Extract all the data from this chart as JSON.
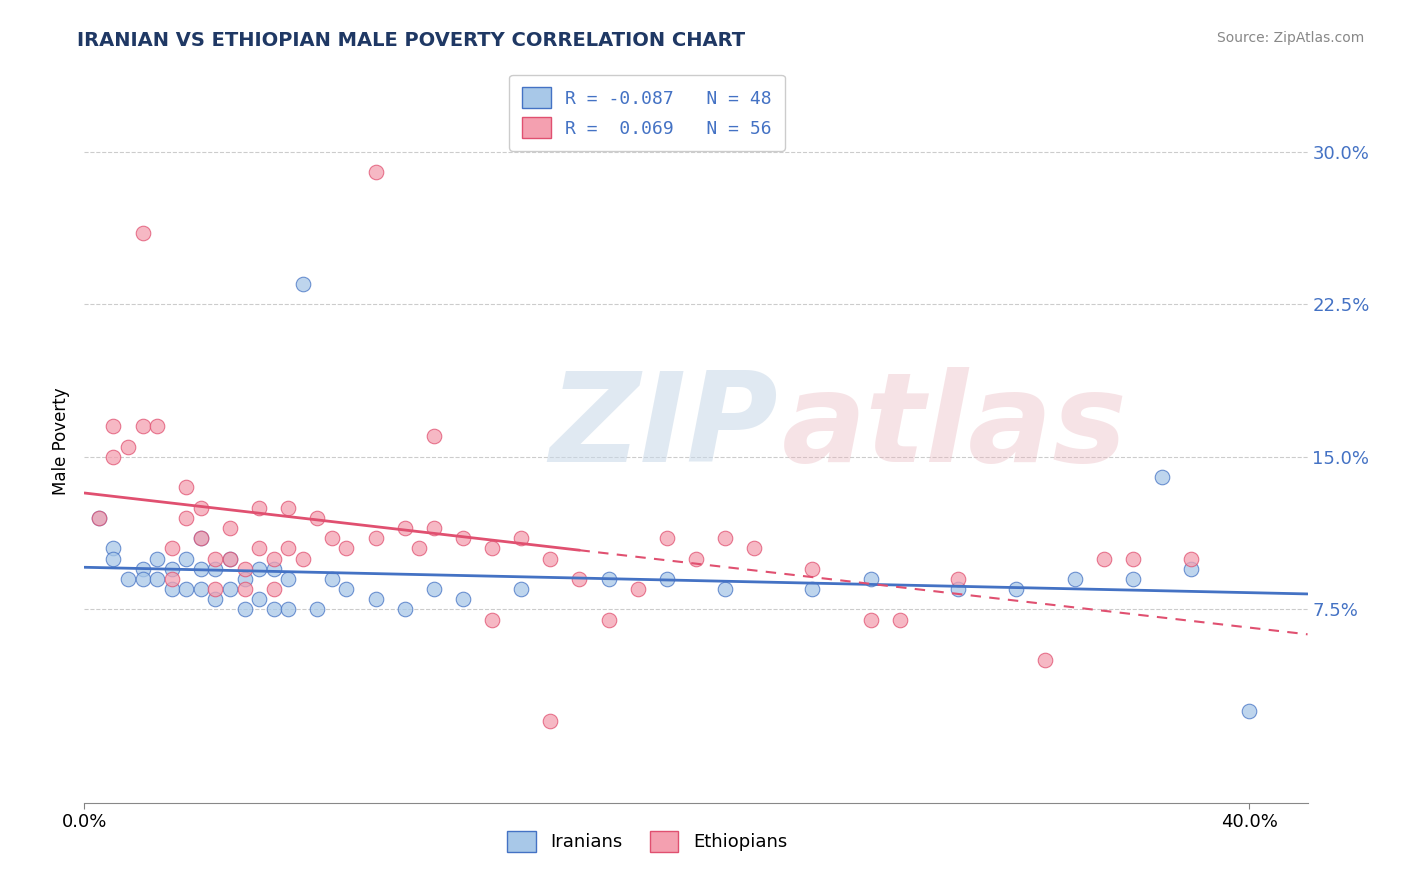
{
  "title": "IRANIAN VS ETHIOPIAN MALE POVERTY CORRELATION CHART",
  "source": "Source: ZipAtlas.com",
  "ylabel": "Male Poverty",
  "xlim": [
    0.0,
    0.42
  ],
  "ylim": [
    -0.02,
    0.335
  ],
  "legend_labels": [
    "Iranians",
    "Ethiopians"
  ],
  "legend_r": [
    -0.087,
    0.069
  ],
  "legend_n": [
    48,
    56
  ],
  "blue_color": "#A8C8E8",
  "pink_color": "#F4A0B0",
  "blue_line_color": "#4472C4",
  "pink_line_color": "#E05070",
  "title_color": "#1F3864",
  "axis_label_color": "#4472C4",
  "iranians_x": [
    0.005,
    0.01,
    0.01,
    0.015,
    0.02,
    0.02,
    0.025,
    0.025,
    0.03,
    0.03,
    0.035,
    0.035,
    0.04,
    0.04,
    0.04,
    0.045,
    0.045,
    0.05,
    0.05,
    0.055,
    0.055,
    0.06,
    0.06,
    0.065,
    0.065,
    0.07,
    0.07,
    0.075,
    0.08,
    0.085,
    0.09,
    0.1,
    0.11,
    0.12,
    0.13,
    0.15,
    0.18,
    0.2,
    0.22,
    0.25,
    0.27,
    0.3,
    0.32,
    0.34,
    0.36,
    0.37,
    0.38,
    0.4
  ],
  "iranians_y": [
    0.12,
    0.105,
    0.1,
    0.09,
    0.095,
    0.09,
    0.1,
    0.09,
    0.095,
    0.085,
    0.1,
    0.085,
    0.11,
    0.095,
    0.085,
    0.095,
    0.08,
    0.1,
    0.085,
    0.09,
    0.075,
    0.095,
    0.08,
    0.095,
    0.075,
    0.09,
    0.075,
    0.235,
    0.075,
    0.09,
    0.085,
    0.08,
    0.075,
    0.085,
    0.08,
    0.085,
    0.09,
    0.09,
    0.085,
    0.085,
    0.09,
    0.085,
    0.085,
    0.09,
    0.09,
    0.14,
    0.095,
    0.025
  ],
  "ethiopians_x": [
    0.005,
    0.01,
    0.01,
    0.015,
    0.02,
    0.02,
    0.025,
    0.03,
    0.03,
    0.035,
    0.035,
    0.04,
    0.04,
    0.045,
    0.045,
    0.05,
    0.05,
    0.055,
    0.055,
    0.06,
    0.06,
    0.065,
    0.065,
    0.07,
    0.07,
    0.075,
    0.08,
    0.085,
    0.09,
    0.1,
    0.11,
    0.115,
    0.12,
    0.13,
    0.14,
    0.15,
    0.16,
    0.17,
    0.19,
    0.2,
    0.21,
    0.23,
    0.25,
    0.27,
    0.3,
    0.33,
    0.36,
    0.38,
    0.1,
    0.12,
    0.14,
    0.16,
    0.18,
    0.22,
    0.28,
    0.35
  ],
  "ethiopians_y": [
    0.12,
    0.15,
    0.165,
    0.155,
    0.165,
    0.26,
    0.165,
    0.105,
    0.09,
    0.12,
    0.135,
    0.125,
    0.11,
    0.1,
    0.085,
    0.115,
    0.1,
    0.095,
    0.085,
    0.125,
    0.105,
    0.1,
    0.085,
    0.125,
    0.105,
    0.1,
    0.12,
    0.11,
    0.105,
    0.11,
    0.115,
    0.105,
    0.115,
    0.11,
    0.105,
    0.11,
    0.1,
    0.09,
    0.085,
    0.11,
    0.1,
    0.105,
    0.095,
    0.07,
    0.09,
    0.05,
    0.1,
    0.1,
    0.29,
    0.16,
    0.07,
    0.02,
    0.07,
    0.11,
    0.07,
    0.1
  ],
  "ytick_vals": [
    0.075,
    0.15,
    0.225,
    0.3
  ],
  "ytick_labels": [
    "7.5%",
    "15.0%",
    "22.5%",
    "30.0%"
  ],
  "xtick_vals": [
    0.0,
    0.4
  ],
  "xtick_labels": [
    "0.0%",
    "40.0%"
  ]
}
